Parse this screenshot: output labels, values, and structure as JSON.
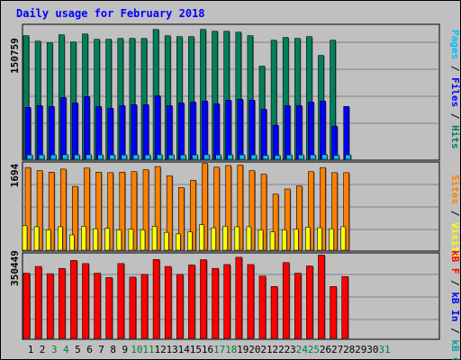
{
  "title": "Daily usage for February 2018",
  "colors": {
    "hits": "#00805c",
    "files": "#0000ff",
    "pages": "#00c0ff",
    "visits": "#ffff00",
    "sites": "#ff8000",
    "kb_in": "#00a0a0",
    "kb_out": "#ff0000",
    "weekday_label": "#000000",
    "weekend_label": "#008040"
  },
  "chart_data": [
    {
      "type": "bar",
      "title": "Daily usage for February 2018",
      "categories": [
        "1",
        "2",
        "3",
        "4",
        "5",
        "6",
        "7",
        "8",
        "9",
        "10",
        "11",
        "12",
        "13",
        "14",
        "15",
        "16",
        "17",
        "18",
        "19",
        "20",
        "21",
        "22",
        "23",
        "24",
        "25",
        "26",
        "27",
        "28",
        "29",
        "30",
        "31"
      ],
      "weekend_days": [
        "3",
        "4",
        "10",
        "11",
        "17",
        "18",
        "24",
        "25",
        "31"
      ],
      "max_label": "150759",
      "ylim": [
        0,
        150759
      ],
      "series": [
        {
          "name": "Hits",
          "values": [
            138000,
            132000,
            130000,
            139000,
            131000,
            140000,
            134000,
            134000,
            135000,
            135000,
            135000,
            145000,
            138000,
            137000,
            137000,
            145000,
            143000,
            143000,
            142000,
            138000,
            104000,
            133000,
            136000,
            135000,
            137000,
            116000,
            133000,
            null,
            null,
            null,
            null
          ]
        },
        {
          "name": "Files",
          "values": [
            58000,
            60000,
            59000,
            69000,
            63000,
            70000,
            59000,
            57000,
            60000,
            61000,
            61000,
            71000,
            60000,
            63000,
            64000,
            65000,
            62000,
            66000,
            67000,
            66000,
            56000,
            38000,
            60000,
            60000,
            64000,
            65000,
            37000,
            59000,
            null,
            null,
            null
          ]
        },
        {
          "name": "Pages",
          "values": [
            5000,
            5000,
            5000,
            5200,
            5000,
            5200,
            5000,
            5000,
            5000,
            5000,
            5000,
            5200,
            5000,
            5000,
            5000,
            5200,
            5000,
            5000,
            5000,
            5000,
            4500,
            4500,
            5000,
            5000,
            5000,
            5200,
            4500,
            5000,
            null,
            null,
            null
          ]
        }
      ]
    },
    {
      "type": "bar",
      "categories": [
        "1",
        "2",
        "3",
        "4",
        "5",
        "6",
        "7",
        "8",
        "9",
        "10",
        "11",
        "12",
        "13",
        "14",
        "15",
        "16",
        "17",
        "18",
        "19",
        "20",
        "21",
        "22",
        "23",
        "24",
        "25",
        "26",
        "27",
        "28",
        "29",
        "30",
        "31"
      ],
      "max_label": "1694",
      "ylim": [
        0,
        1694
      ],
      "series": [
        {
          "name": "Sites",
          "values": [
            1620,
            1560,
            1530,
            1590,
            1250,
            1610,
            1530,
            1520,
            1530,
            1540,
            1580,
            1640,
            1460,
            1230,
            1370,
            1700,
            1630,
            1660,
            1670,
            1560,
            1490,
            1100,
            1200,
            1260,
            1540,
            1620,
            1520,
            1520,
            null,
            null,
            null
          ]
        },
        {
          "name": "Visits",
          "values": [
            480,
            460,
            400,
            460,
            300,
            470,
            420,
            430,
            400,
            410,
            400,
            470,
            350,
            320,
            360,
            500,
            440,
            470,
            460,
            460,
            400,
            360,
            400,
            410,
            450,
            440,
            420,
            460,
            null,
            null,
            null
          ]
        }
      ]
    },
    {
      "type": "bar",
      "categories": [
        "1",
        "2",
        "3",
        "4",
        "5",
        "6",
        "7",
        "8",
        "9",
        "10",
        "11",
        "12",
        "13",
        "14",
        "15",
        "16",
        "17",
        "18",
        "19",
        "20",
        "21",
        "22",
        "23",
        "24",
        "25",
        "26",
        "27",
        "28",
        "29",
        "30",
        "31"
      ],
      "max_label": "350449",
      "ylim": [
        0,
        350449
      ],
      "series": [
        {
          "name": "kB In",
          "values": [
            0,
            0,
            0,
            0,
            0,
            0,
            0,
            0,
            0,
            0,
            0,
            0,
            0,
            0,
            0,
            0,
            0,
            0,
            0,
            0,
            0,
            0,
            0,
            0,
            0,
            0,
            0,
            0,
            null,
            null,
            null
          ]
        },
        {
          "name": "kB Out",
          "values": [
            270000,
            298000,
            268000,
            290000,
            323000,
            310000,
            270000,
            252000,
            310000,
            254000,
            265000,
            327000,
            298000,
            265000,
            304000,
            326000,
            290000,
            306000,
            336000,
            306000,
            258000,
            215000,
            314000,
            270000,
            300000,
            345000,
            215000,
            256000,
            null,
            null,
            null
          ]
        }
      ]
    }
  ],
  "legend": {
    "panel1": [
      {
        "text": "Pages",
        "color": "#00c0ff"
      },
      {
        "text": " / ",
        "color": "#000000"
      },
      {
        "text": "Files",
        "color": "#0000ff"
      },
      {
        "text": " / ",
        "color": "#000000"
      },
      {
        "text": "Hits",
        "color": "#00805c"
      }
    ],
    "panel2": [
      {
        "text": "Sites",
        "color": "#ff8000"
      },
      {
        "text": " / ",
        "color": "#000000"
      },
      {
        "text": "Visits",
        "color": "#ffff00"
      }
    ],
    "panel3": [
      {
        "text": "kB F",
        "color": "#ff0000"
      },
      {
        "text": " / ",
        "color": "#000000"
      },
      {
        "text": "kB In",
        "color": "#0000ff"
      },
      {
        "text": " / ",
        "color": "#000000"
      },
      {
        "text": "kB Out",
        "color": "#00a0a0"
      }
    ]
  }
}
